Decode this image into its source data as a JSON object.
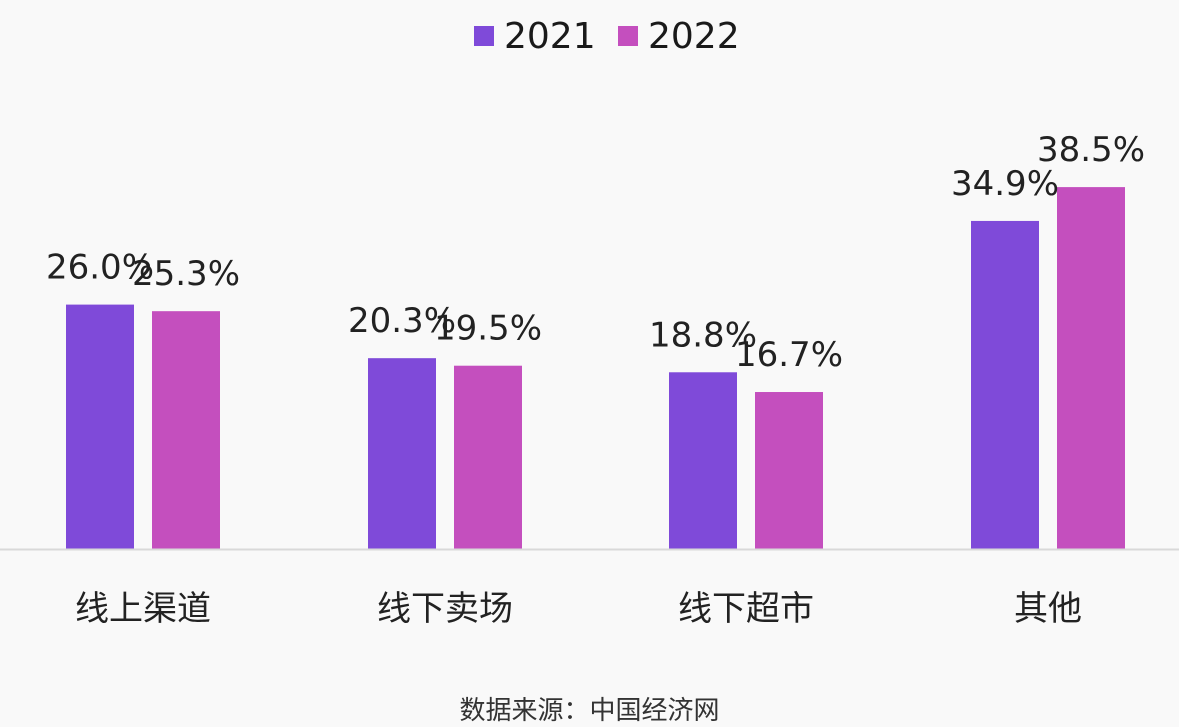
{
  "chart_data": {
    "type": "bar",
    "categories": [
      "线上渠道",
      "线下卖场",
      "线下超市",
      "其他"
    ],
    "series": [
      {
        "name": "2021",
        "color": "#7f4ad9",
        "values": [
          26.0,
          20.3,
          18.8,
          34.9
        ],
        "labels": [
          "26.0%",
          "20.3%",
          "18.8%",
          "34.9%"
        ]
      },
      {
        "name": "2022",
        "color": "#c44fbe",
        "values": [
          25.3,
          19.5,
          16.7,
          38.5
        ],
        "labels": [
          "25.3%",
          "19.5%",
          "16.7%",
          "38.5%"
        ]
      }
    ],
    "unit": "%",
    "ylim": [
      0,
      40
    ],
    "grid": false,
    "legend_position": "top-center"
  },
  "source": "数据来源：中国经济网"
}
